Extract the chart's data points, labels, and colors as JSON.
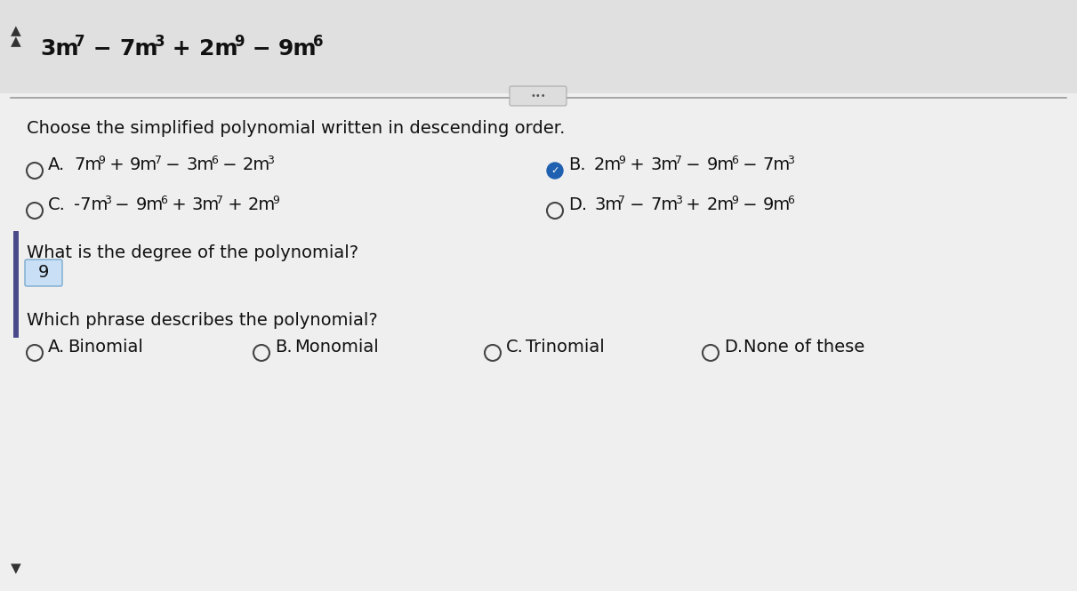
{
  "bg_color": "#e8e8e8",
  "content_bg": "#f0f0f0",
  "title_parts": [
    {
      "text": "3m",
      "super": "7",
      "sign": " − "
    },
    {
      "text": "7m",
      "super": "3",
      "sign": " + "
    },
    {
      "text": "2m",
      "super": "9",
      "sign": " − "
    },
    {
      "text": "9m",
      "super": "6",
      "sign": ""
    }
  ],
  "question1": "Choose the simplified polynomial written in descending order.",
  "options": [
    {
      "label": "A.",
      "parts": [
        {
          "text": "7m",
          "sup": "9"
        },
        {
          "sign": " + "
        },
        {
          "text": "9m",
          "sup": "7"
        },
        {
          "sign": " − "
        },
        {
          "text": "3m",
          "sup": "6"
        },
        {
          "sign": " − "
        },
        {
          "text": "2m",
          "sup": "3"
        }
      ],
      "selected": false,
      "row": 0,
      "col": 0
    },
    {
      "label": "B.",
      "parts": [
        {
          "text": "2m",
          "sup": "9"
        },
        {
          "sign": " + "
        },
        {
          "text": "3m",
          "sup": "7"
        },
        {
          "sign": " − "
        },
        {
          "text": "9m",
          "sup": "6"
        },
        {
          "sign": " − "
        },
        {
          "text": "7m",
          "sup": "3"
        }
      ],
      "selected": true,
      "row": 0,
      "col": 1
    },
    {
      "label": "C.",
      "parts": [
        {
          "sign": "−"
        },
        {
          "text": "7m",
          "sup": "3"
        },
        {
          "sign": " − "
        },
        {
          "text": "9m",
          "sup": "6"
        },
        {
          "sign": " + "
        },
        {
          "text": "3m",
          "sup": "7"
        },
        {
          "sign": " + "
        },
        {
          "text": "2m",
          "sup": "9"
        }
      ],
      "selected": false,
      "row": 1,
      "col": 0
    },
    {
      "label": "D.",
      "parts": [
        {
          "text": "3m",
          "sup": "7"
        },
        {
          "sign": " − "
        },
        {
          "text": "7m",
          "sup": "3"
        },
        {
          "sign": " + "
        },
        {
          "text": "2m",
          "sup": "9"
        },
        {
          "sign": " − "
        },
        {
          "text": "9m",
          "sup": "6"
        }
      ],
      "selected": false,
      "row": 1,
      "col": 1
    }
  ],
  "degree_question": "What is the degree of the polynomial?",
  "degree_answer": "9",
  "phrase_question": "Which phrase describes the polynomial?",
  "phrase_options": [
    {
      "label": "A.",
      "text": "Binomial"
    },
    {
      "label": "B.",
      "text": "Monomial"
    },
    {
      "label": "C.",
      "text": "Trinomial"
    },
    {
      "label": "D.",
      "text": "None of these"
    }
  ],
  "main_font_size": 14,
  "title_font_size": 17,
  "sup_font_size": 10,
  "title_sup_size": 12,
  "text_color": "#111111",
  "selected_color": "#2060b0",
  "answer_box_color": "#c8dff5",
  "answer_box_edge": "#7aaad0",
  "left_bar_color": "#4a4a8a",
  "circle_color": "#444444",
  "separator_color": "#999999"
}
